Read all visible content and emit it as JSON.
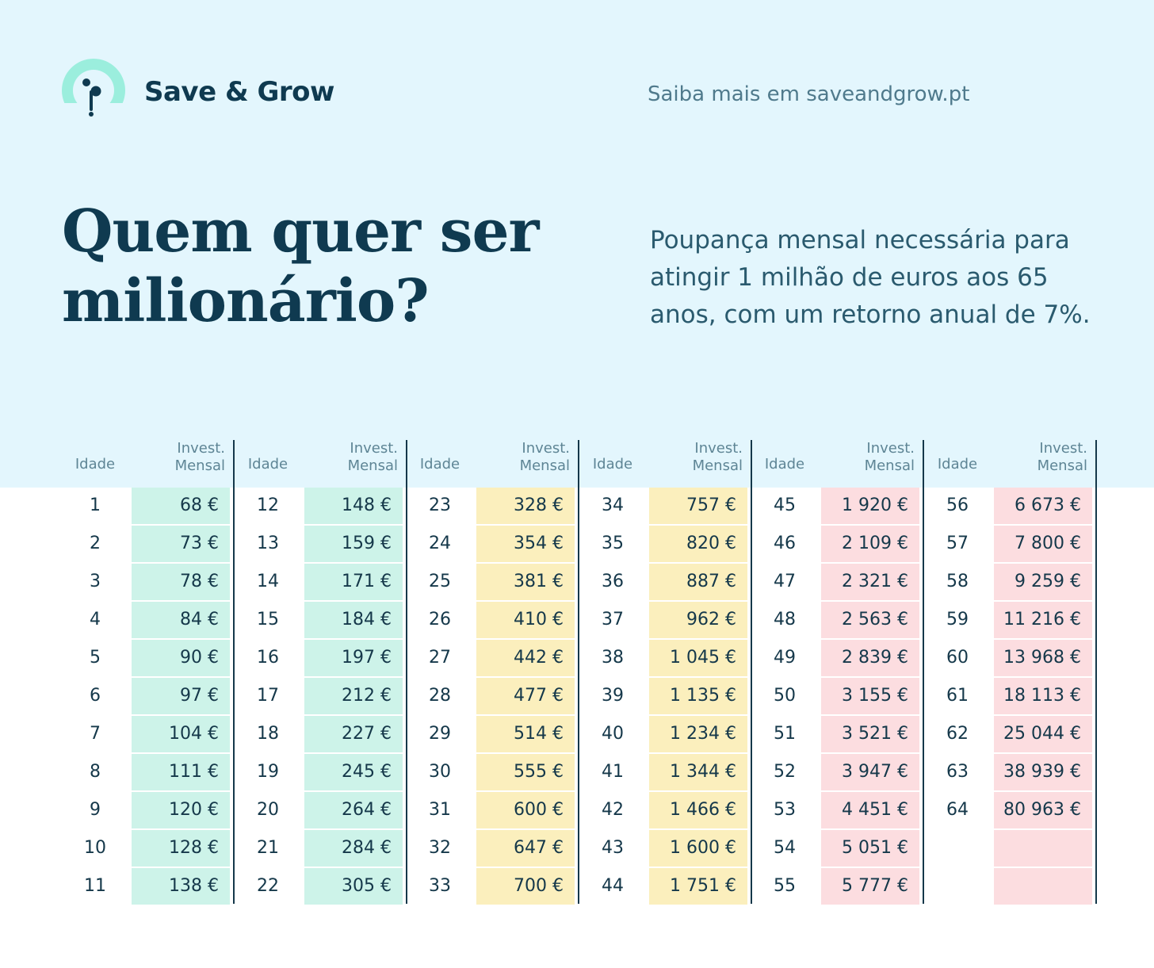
{
  "brand": {
    "name": "Save & Grow",
    "link_text": "Saiba mais em saveandgrow.pt"
  },
  "headline": {
    "line1": "Quem quer ser",
    "line2": "milionário?"
  },
  "subtitle": {
    "line1": "Poupança mensal necessária para",
    "line2": "atingir 1 milhão de euros aos 65",
    "line3": "anos, com um retorno anual de 7%."
  },
  "colors": {
    "green": "#cdf3e9",
    "yellow": "#fbefbd",
    "pink": "#fcdde0",
    "background": "#e3f6fd",
    "ink": "#0f3a50"
  },
  "table": {
    "header_age": "Idade",
    "header_invest_1": "Invest.",
    "header_invest_2": "Mensal",
    "groups": [
      {
        "color": "green",
        "rows": [
          {
            "age": "1",
            "value": "68 €"
          },
          {
            "age": "2",
            "value": "73 €"
          },
          {
            "age": "3",
            "value": "78 €"
          },
          {
            "age": "4",
            "value": "84 €"
          },
          {
            "age": "5",
            "value": "90 €"
          },
          {
            "age": "6",
            "value": "97 €"
          },
          {
            "age": "7",
            "value": "104 €"
          },
          {
            "age": "8",
            "value": "111 €"
          },
          {
            "age": "9",
            "value": "120 €"
          },
          {
            "age": "10",
            "value": "128 €"
          },
          {
            "age": "11",
            "value": "138 €"
          }
        ]
      },
      {
        "color": "green",
        "rows": [
          {
            "age": "12",
            "value": "148 €"
          },
          {
            "age": "13",
            "value": "159 €"
          },
          {
            "age": "14",
            "value": "171 €"
          },
          {
            "age": "15",
            "value": "184 €"
          },
          {
            "age": "16",
            "value": "197 €"
          },
          {
            "age": "17",
            "value": "212 €"
          },
          {
            "age": "18",
            "value": "227 €"
          },
          {
            "age": "19",
            "value": "245 €"
          },
          {
            "age": "20",
            "value": "264 €"
          },
          {
            "age": "21",
            "value": "284 €"
          },
          {
            "age": "22",
            "value": "305 €"
          }
        ]
      },
      {
        "color": "yellow",
        "rows": [
          {
            "age": "23",
            "value": "328 €"
          },
          {
            "age": "24",
            "value": "354 €"
          },
          {
            "age": "25",
            "value": "381 €"
          },
          {
            "age": "26",
            "value": "410 €"
          },
          {
            "age": "27",
            "value": "442 €"
          },
          {
            "age": "28",
            "value": "477 €"
          },
          {
            "age": "29",
            "value": "514 €"
          },
          {
            "age": "30",
            "value": "555 €"
          },
          {
            "age": "31",
            "value": "600 €"
          },
          {
            "age": "32",
            "value": "647 €"
          },
          {
            "age": "33",
            "value": "700 €"
          }
        ]
      },
      {
        "color": "yellow",
        "rows": [
          {
            "age": "34",
            "value": "757 €"
          },
          {
            "age": "35",
            "value": "820 €"
          },
          {
            "age": "36",
            "value": "887 €"
          },
          {
            "age": "37",
            "value": "962 €"
          },
          {
            "age": "38",
            "value": "1 045 €"
          },
          {
            "age": "39",
            "value": "1 135 €"
          },
          {
            "age": "40",
            "value": "1 234 €"
          },
          {
            "age": "41",
            "value": "1 344 €"
          },
          {
            "age": "42",
            "value": "1 466 €"
          },
          {
            "age": "43",
            "value": "1 600 €"
          },
          {
            "age": "44",
            "value": "1 751 €"
          }
        ]
      },
      {
        "color": "pink",
        "rows": [
          {
            "age": "45",
            "value": "1 920 €"
          },
          {
            "age": "46",
            "value": "2 109 €"
          },
          {
            "age": "47",
            "value": "2 321 €"
          },
          {
            "age": "48",
            "value": "2 563 €"
          },
          {
            "age": "49",
            "value": "2 839 €"
          },
          {
            "age": "50",
            "value": "3 155 €"
          },
          {
            "age": "51",
            "value": "3 521 €"
          },
          {
            "age": "52",
            "value": "3 947 €"
          },
          {
            "age": "53",
            "value": "4 451 €"
          },
          {
            "age": "54",
            "value": "5 051 €"
          },
          {
            "age": "55",
            "value": "5 777 €"
          }
        ]
      },
      {
        "color": "pink",
        "rows": [
          {
            "age": "56",
            "value": "6 673 €"
          },
          {
            "age": "57",
            "value": "7 800 €"
          },
          {
            "age": "58",
            "value": "9 259 €"
          },
          {
            "age": "59",
            "value": "11 216 €"
          },
          {
            "age": "60",
            "value": "13 968 €"
          },
          {
            "age": "61",
            "value": "18 113 €"
          },
          {
            "age": "62",
            "value": "25 044 €"
          },
          {
            "age": "63",
            "value": "38 939 €"
          },
          {
            "age": "64",
            "value": "80 963 €"
          },
          {
            "age": "",
            "value": ""
          },
          {
            "age": "",
            "value": ""
          }
        ]
      }
    ]
  }
}
